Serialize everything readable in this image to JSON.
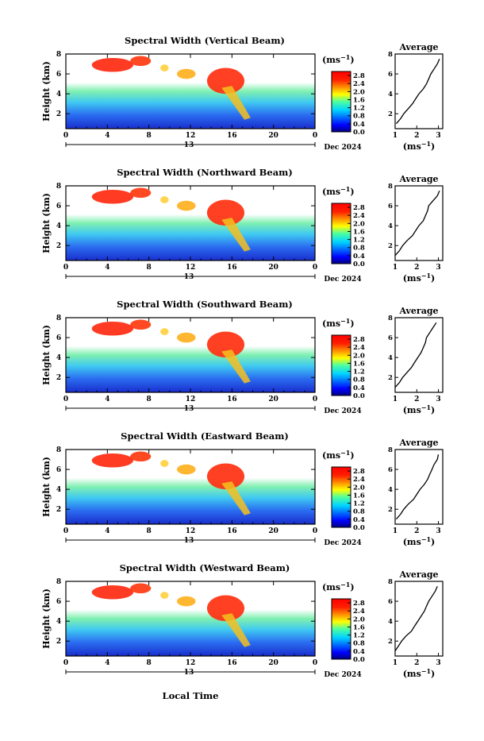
{
  "figure": {
    "xlabel": "Local Time",
    "month": "Dec 2024",
    "day_label": "13",
    "x_ticks": [
      "0",
      "4",
      "8",
      "12",
      "16",
      "20",
      "0"
    ],
    "y_ticks": [
      "2",
      "4",
      "6",
      "8"
    ],
    "ylabel": "Height (km)",
    "unit": "(ms",
    "unit_sup": "−1",
    "unit_close": ")",
    "colorbar_ticks": [
      "0.0",
      "0.4",
      "0.8",
      "1.2",
      "1.6",
      "2.0",
      "2.4",
      "2.8"
    ],
    "avg_title": "Average",
    "avg_x_ticks": [
      "1",
      "2",
      "3"
    ]
  },
  "chart_data": [
    {
      "type": "heatmap",
      "title": "Spectral Width (Vertical Beam)",
      "xlabel": "",
      "ylabel": "Height (km)",
      "xlim": [
        0,
        24
      ],
      "ylim": [
        0.5,
        8
      ],
      "colorbar": {
        "label": "(ms−1)",
        "range": [
          0.0,
          3.0
        ],
        "ticks": [
          0.0,
          0.4,
          0.8,
          1.2,
          1.6,
          2.0,
          2.4,
          2.8
        ]
      },
      "average": {
        "xlim": [
          1,
          3.2
        ],
        "heights": [
          1.0,
          1.5,
          2.0,
          2.5,
          3.0,
          3.5,
          4.0,
          4.5,
          5.0,
          5.5,
          6.0,
          6.5,
          7.0,
          7.5
        ],
        "values": [
          1.05,
          1.25,
          1.4,
          1.6,
          1.8,
          1.95,
          2.1,
          2.3,
          2.45,
          2.55,
          2.65,
          2.8,
          2.95,
          3.05
        ]
      }
    },
    {
      "type": "heatmap",
      "title": "Spectral Width (Northward Beam)",
      "xlabel": "",
      "ylabel": "Height (km)",
      "xlim": [
        0,
        24
      ],
      "ylim": [
        0.5,
        8
      ],
      "colorbar": {
        "label": "(ms−1)",
        "range": [
          0.0,
          3.0
        ],
        "ticks": [
          0.0,
          0.4,
          0.8,
          1.2,
          1.6,
          2.0,
          2.4,
          2.8
        ]
      },
      "average": {
        "xlim": [
          1,
          3.2
        ],
        "heights": [
          1.0,
          1.5,
          2.0,
          2.5,
          3.0,
          3.5,
          4.0,
          4.5,
          5.0,
          5.5,
          6.0,
          6.5,
          7.0,
          7.5
        ],
        "values": [
          1.0,
          1.2,
          1.35,
          1.55,
          1.8,
          1.95,
          2.1,
          2.3,
          2.4,
          2.5,
          2.55,
          2.75,
          2.95,
          3.05
        ]
      }
    },
    {
      "type": "heatmap",
      "title": "Spectral Width (Southward Beam)",
      "xlabel": "",
      "ylabel": "Height (km)",
      "xlim": [
        0,
        24
      ],
      "ylim": [
        0.5,
        8
      ],
      "colorbar": {
        "label": "(ms−1)",
        "range": [
          0.0,
          3.0
        ],
        "ticks": [
          0.0,
          0.4,
          0.8,
          1.2,
          1.6,
          2.0,
          2.4,
          2.8
        ]
      },
      "average": {
        "xlim": [
          1,
          3.2
        ],
        "heights": [
          1.0,
          1.5,
          2.0,
          2.5,
          3.0,
          3.5,
          4.0,
          4.5,
          5.0,
          5.5,
          6.0,
          6.5,
          7.0,
          7.5
        ],
        "values": [
          1.0,
          1.2,
          1.35,
          1.55,
          1.75,
          1.9,
          2.05,
          2.2,
          2.3,
          2.4,
          2.45,
          2.6,
          2.75,
          2.9
        ]
      }
    },
    {
      "type": "heatmap",
      "title": "Spectral Width (Eastward Beam)",
      "xlabel": "",
      "ylabel": "Height (km)",
      "xlim": [
        0,
        24
      ],
      "ylim": [
        0.5,
        8
      ],
      "colorbar": {
        "label": "(ms−1)",
        "range": [
          0.0,
          3.0
        ],
        "ticks": [
          0.0,
          0.4,
          0.8,
          1.2,
          1.6,
          2.0,
          2.4,
          2.8
        ]
      },
      "average": {
        "xlim": [
          1,
          3.2
        ],
        "heights": [
          1.0,
          1.5,
          2.0,
          2.5,
          3.0,
          3.5,
          4.0,
          4.5,
          5.0,
          5.5,
          6.0,
          6.5,
          7.0,
          7.5
        ],
        "values": [
          1.05,
          1.25,
          1.4,
          1.6,
          1.85,
          2.0,
          2.15,
          2.35,
          2.5,
          2.6,
          2.7,
          2.8,
          2.95,
          3.0
        ]
      }
    },
    {
      "type": "heatmap",
      "title": "Spectral Width (Westward Beam)",
      "xlabel": "Local Time",
      "ylabel": "Height (km)",
      "xlim": [
        0,
        24
      ],
      "ylim": [
        0.5,
        8
      ],
      "colorbar": {
        "label": "(ms−1)",
        "range": [
          0.0,
          3.0
        ],
        "ticks": [
          0.0,
          0.4,
          0.8,
          1.2,
          1.6,
          2.0,
          2.4,
          2.8
        ]
      },
      "average": {
        "xlim": [
          1,
          3.2
        ],
        "heights": [
          1.0,
          1.5,
          2.0,
          2.5,
          3.0,
          3.5,
          4.0,
          4.5,
          5.0,
          5.5,
          6.0,
          6.5,
          7.0,
          7.5
        ],
        "values": [
          1.0,
          1.15,
          1.3,
          1.5,
          1.75,
          1.9,
          2.05,
          2.2,
          2.35,
          2.45,
          2.55,
          2.7,
          2.85,
          2.95
        ]
      }
    }
  ]
}
